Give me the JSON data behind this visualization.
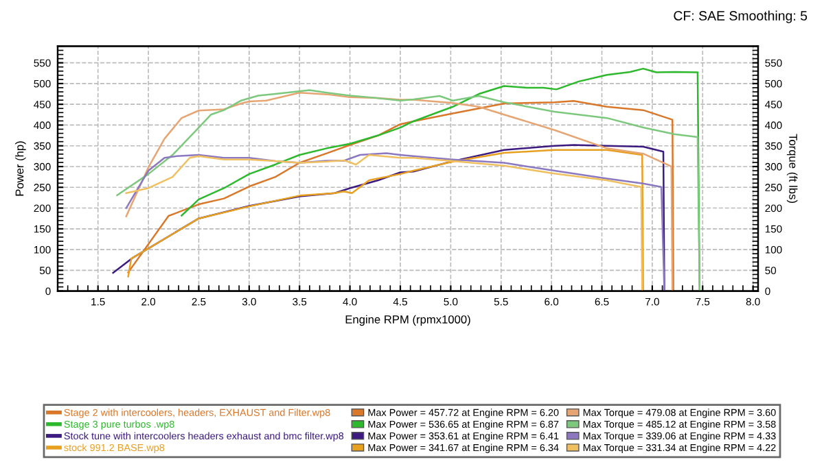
{
  "chart_data": {
    "type": "line",
    "xlabel": "Engine RPM (rpmx1000)",
    "ylabel": "Power (hp)",
    "y2label": "Torque (ft lbs)",
    "xlim": [
      1.1,
      8.05
    ],
    "ylim": [
      0,
      590
    ],
    "y2lim": [
      0,
      590
    ],
    "xticks": [
      1.5,
      {
        "value": 2,
        "label": "2.0"
      },
      2.5,
      {
        "value": 3,
        "label": "3.0"
      },
      3.5,
      {
        "value": 4,
        "label": "4.0"
      },
      4.5,
      {
        "value": 5,
        "label": "5.0"
      },
      5.5,
      {
        "value": 6,
        "label": "6.0"
      },
      6.5,
      {
        "value": 7,
        "label": "7.0"
      },
      7.5,
      {
        "value": 8,
        "label": "8.0"
      }
    ],
    "yticks": [
      0,
      50,
      100,
      150,
      200,
      250,
      300,
      350,
      400,
      450,
      500,
      550
    ],
    "y2ticks": [
      0,
      50,
      100,
      150,
      200,
      250,
      300,
      350,
      400,
      450,
      500,
      550
    ],
    "grid": true,
    "legend": "bottom",
    "marker": "none",
    "line_style": "solid",
    "annotations": [
      "CF: SAE Smoothing: 5",
      "Max Power = 457.72 at Engine RPM = 6.20",
      "Max Power = 536.65 at Engine RPM = 6.87",
      "Max Power = 353.61 at Engine RPM = 6.41",
      "Max Power = 341.67 at Engine RPM = 6.34",
      "Max Torque = 479.08 at Engine RPM = 3.60",
      "Max Torque = 485.12 at Engine RPM = 3.58",
      "Max Torque = 339.06 at Engine RPM = 4.33",
      "Max Torque = 331.34 at Engine RPM = 4.22"
    ],
    "series": [
      {
        "name": "Stage 2 with intercoolers, headers, EXHAUST and Filter.wp8",
        "color": "#d9772a",
        "x": [
          1.8,
          2.2,
          2.5,
          2.75,
          3.0,
          3.26,
          3.5,
          3.77,
          4.0,
          4.28,
          4.5,
          4.63,
          5.02,
          5.53,
          6.03,
          6.22,
          6.55,
          6.91,
          7.2,
          7.21
        ],
        "values": [
          45,
          181,
          209,
          223,
          252,
          275,
          309,
          332,
          352,
          375,
          402,
          409,
          428,
          452,
          455,
          458,
          444,
          436,
          413,
          0
        ]
      },
      {
        "name": "Stage 3 pure turbos .wp8",
        "color": "#2db82d",
        "x": [
          2.33,
          2.5,
          2.75,
          3.0,
          3.26,
          3.5,
          3.77,
          4.0,
          4.28,
          4.5,
          4.63,
          5.02,
          5.28,
          5.53,
          5.75,
          5.92,
          6.05,
          6.27,
          6.55,
          6.78,
          6.91,
          7.04,
          7.22,
          7.45,
          7.47
        ],
        "values": [
          182,
          221,
          248,
          282,
          305,
          328,
          344,
          355,
          375,
          394,
          409,
          444,
          475,
          494,
          490,
          490,
          486,
          505,
          521,
          528,
          536,
          527,
          528,
          527,
          0
        ]
      },
      {
        "name": "Stock tune with intercoolers headers exhaust and bmc filter.wp8",
        "color": "#3c1a80",
        "x": [
          1.65,
          1.85,
          2.5,
          3.0,
          3.5,
          3.85,
          4.0,
          4.28,
          4.5,
          4.63,
          5.02,
          5.53,
          6.03,
          6.22,
          6.55,
          6.91,
          7.11,
          7.12
        ],
        "values": [
          44,
          81,
          175,
          205,
          228,
          236,
          248,
          267,
          286,
          288,
          313,
          340,
          350,
          352,
          350,
          348,
          336,
          0
        ]
      },
      {
        "name": "stock 991.2 BASE.wp8",
        "color": "#e8a020",
        "x": [
          1.8,
          1.83,
          2.5,
          3.0,
          3.5,
          3.85,
          3.94,
          4.02,
          4.19,
          4.5,
          4.63,
          5.02,
          5.53,
          6.03,
          6.22,
          6.55,
          6.9,
          6.91
        ],
        "values": [
          35,
          78,
          175,
          204,
          230,
          236,
          240,
          236,
          267,
          282,
          290,
          312,
          333,
          340,
          340,
          340,
          328,
          0
        ]
      },
      {
        "axis": "y2",
        "color": "#e6a572",
        "x": [
          1.78,
          2.0,
          2.16,
          2.33,
          2.5,
          2.75,
          2.92,
          3.0,
          3.17,
          3.5,
          3.77,
          4.0,
          4.28,
          4.5,
          4.63,
          5.02,
          5.28,
          5.53,
          6.03,
          6.55,
          6.91,
          7.19,
          7.2
        ],
        "values": [
          180,
          298,
          367,
          417,
          435,
          438,
          452,
          457,
          459,
          478,
          474,
          467,
          465,
          461,
          461,
          453,
          444,
          425,
          388,
          344,
          331,
          300,
          0
        ]
      },
      {
        "axis": "y2",
        "color": "#7cc87c",
        "x": [
          1.69,
          2.0,
          2.24,
          2.5,
          2.62,
          2.75,
          2.92,
          3.09,
          3.26,
          3.6,
          3.77,
          4.0,
          4.19,
          4.5,
          4.63,
          4.89,
          5.02,
          5.28,
          5.53,
          6.03,
          6.55,
          6.91,
          7.22,
          7.45,
          7.47
        ],
        "values": [
          231,
          282,
          328,
          394,
          425,
          436,
          459,
          471,
          475,
          484,
          478,
          471,
          467,
          459,
          462,
          470,
          459,
          470,
          455,
          432,
          417,
          394,
          378,
          371,
          0
        ]
      },
      {
        "axis": "y2",
        "color": "#8c78c0",
        "x": [
          1.78,
          2.0,
          2.16,
          2.28,
          2.5,
          2.75,
          3.0,
          3.26,
          3.5,
          3.77,
          3.94,
          4.1,
          4.36,
          4.5,
          4.63,
          5.02,
          5.53,
          6.03,
          6.55,
          6.91,
          7.09,
          7.12
        ],
        "values": [
          200,
          290,
          321,
          325,
          328,
          321,
          321,
          313,
          309,
          314,
          314,
          328,
          332,
          328,
          325,
          317,
          309,
          290,
          271,
          259,
          251,
          0
        ]
      },
      {
        "axis": "y2",
        "color": "#f0c060",
        "x": [
          1.78,
          2.0,
          2.24,
          2.41,
          2.5,
          2.75,
          3.0,
          3.26,
          3.5,
          3.77,
          3.94,
          4.06,
          4.19,
          4.5,
          4.63,
          5.02,
          5.53,
          6.03,
          6.55,
          6.89,
          6.9
        ],
        "values": [
          236,
          248,
          275,
          321,
          325,
          317,
          317,
          313,
          309,
          312,
          315,
          305,
          328,
          321,
          321,
          313,
          302,
          283,
          267,
          251,
          0
        ]
      }
    ]
  }
}
